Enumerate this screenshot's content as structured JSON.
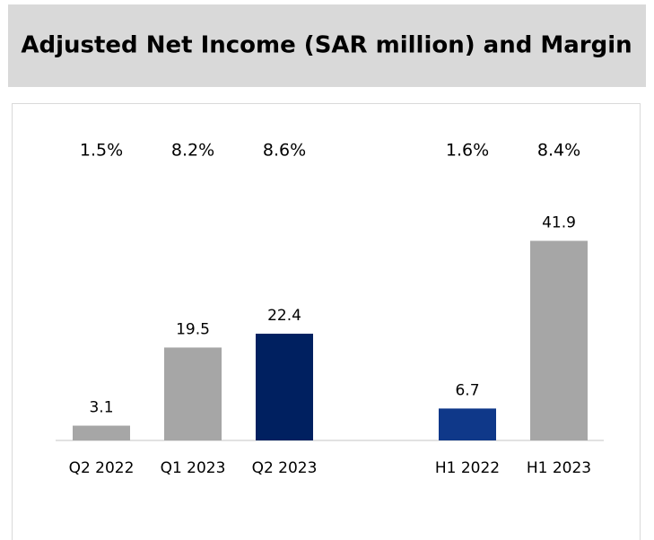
{
  "chart_data": {
    "type": "bar",
    "title": "Adjusted Net Income (SAR million) and Margin",
    "categories": [
      "Q2 2022",
      "Q1 2023",
      "Q2 2023",
      null,
      "H1 2022",
      "H1 2023"
    ],
    "values": [
      3.1,
      19.5,
      22.4,
      null,
      6.7,
      41.9
    ],
    "colors": [
      "#a6a6a6",
      "#a6a6a6",
      "#002060",
      null,
      "#0f3889",
      "#a6a6a6"
    ],
    "margins": {
      "values": [
        1.5,
        8.2,
        8.6,
        null,
        1.6,
        8.4
      ],
      "value_labels": [
        "1.5%",
        "8.2%",
        "8.6%",
        null,
        "1.6%",
        "8.4%"
      ]
    },
    "ylim": [
      0,
      45
    ]
  }
}
